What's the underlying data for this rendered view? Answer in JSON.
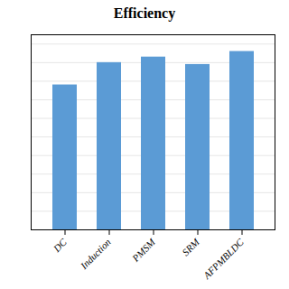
{
  "chart_data": {
    "type": "bar",
    "title": "Efficiency",
    "categories": [
      "DC",
      "Induction",
      "PMSM",
      "SRM",
      "AFPMBLDC"
    ],
    "values": [
      0.78,
      0.9,
      0.93,
      0.89,
      0.96
    ],
    "color": "#5B9BD5",
    "ylim": [
      0.0,
      1.05
    ],
    "yticks": [
      0,
      0.1,
      0.2,
      0.3,
      0.4,
      0.5,
      0.6,
      0.7,
      0.8,
      0.9,
      1.0
    ],
    "grid": true,
    "tick_labels": "x"
  }
}
